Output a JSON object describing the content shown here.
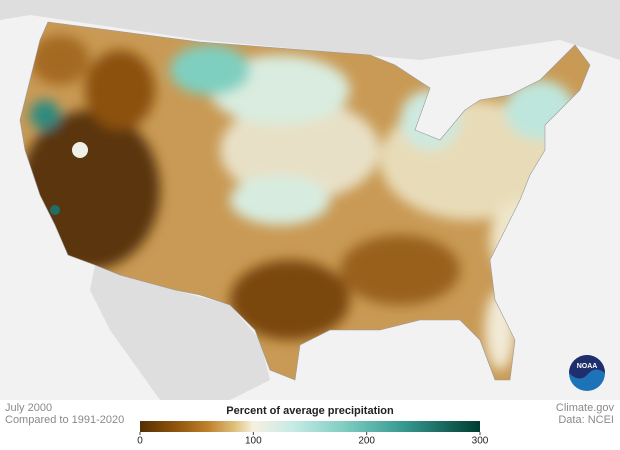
{
  "map": {
    "date": "July 2000",
    "baseline": "Compared to 1991-2020",
    "source": "Climate.gov",
    "data_source": "Data: NCEI",
    "logo": "NOAA"
  },
  "legend": {
    "title": "Percent of average precipitation",
    "range": [
      0,
      300
    ],
    "ticks": [
      0,
      100,
      200,
      300
    ]
  }
}
